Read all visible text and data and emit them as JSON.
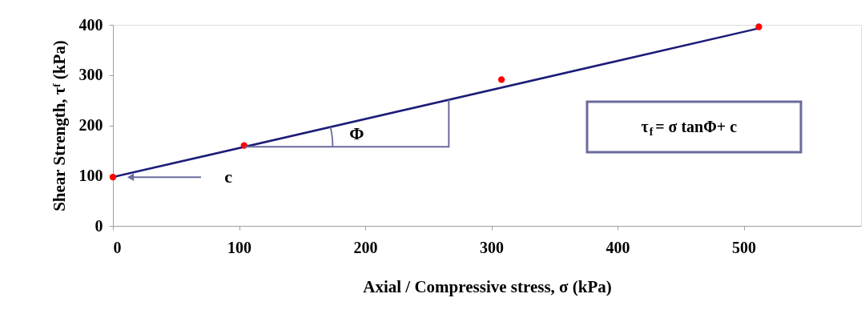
{
  "chart_data": {
    "type": "scatter",
    "xlabel": "Axial / Compressive stress, σ (kPa)",
    "ylabel": "Shear Strength, τᶠ (kPa)",
    "xlim": [
      0,
      593
    ],
    "xticks": [
      0,
      100,
      200,
      300,
      400,
      500
    ],
    "ylim": [
      0,
      400
    ],
    "yticks": [
      0,
      100,
      200,
      300,
      400
    ],
    "grid": false,
    "series": [
      {
        "type": "line",
        "marker": "none",
        "x": [
          0,
          512
        ],
        "values": [
          97,
          393
        ],
        "color": "#1c1c78"
      },
      {
        "marker": "circle",
        "x": [
          0,
          104,
          308,
          512
        ],
        "values": [
          97,
          160,
          291,
          396
        ],
        "color": "#ff0000"
      }
    ],
    "annotations": [
      "c",
      "Φ",
      "τ$_{f}$= σ tanΦ+ c"
    ]
  }
}
